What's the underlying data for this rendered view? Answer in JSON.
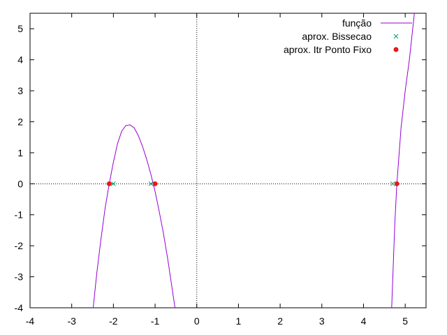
{
  "chart_data": {
    "type": "line",
    "title": "",
    "xlabel": "",
    "ylabel": "",
    "xlim": [
      -4,
      5.5
    ],
    "ylim": [
      -4,
      5.5
    ],
    "x_ticks": [
      -4,
      -3,
      -2,
      -1,
      0,
      1,
      2,
      3,
      4,
      5
    ],
    "y_ticks": [
      -4,
      -3,
      -2,
      -1,
      0,
      1,
      2,
      3,
      4,
      5
    ],
    "x_tick_labels": [
      "-4",
      "-3",
      "-2",
      "-1",
      "0",
      "1",
      "2",
      "3",
      "4",
      "5"
    ],
    "y_tick_labels": [
      "-4",
      "-3",
      "-2",
      "-1",
      "0",
      "1",
      "2",
      "3",
      "4",
      "5"
    ],
    "zero_axes": "dotted",
    "grid": false,
    "legend_position": "top-right",
    "series": [
      {
        "name": "função",
        "style": "line",
        "color": "#9400d3",
        "segments": [
          {
            "x": [
              -2.5,
              -2.4,
              -2.3,
              -2.2,
              -2.1,
              -2.0,
              -1.9,
              -1.8,
              -1.7,
              -1.6,
              -1.5,
              -1.4,
              -1.3,
              -1.2,
              -1.1,
              -1.0,
              -0.9,
              -0.8,
              -0.7,
              -0.6,
              -0.5
            ],
            "y": [
              -4.2,
              -2.9,
              -1.8,
              -0.8,
              0.0,
              0.7,
              1.3,
              1.7,
              1.88,
              1.9,
              1.8,
              1.55,
              1.2,
              0.78,
              0.3,
              -0.25,
              -0.9,
              -1.6,
              -2.4,
              -3.3,
              -4.2
            ]
          },
          {
            "x": [
              4.67,
              4.75,
              4.8,
              4.9,
              5.0,
              5.1,
              5.22
            ],
            "y": [
              -4.2,
              -1.3,
              0.0,
              1.8,
              3.0,
              4.0,
              5.5
            ]
          }
        ]
      },
      {
        "name": "aprox. Bissecao",
        "style": "points",
        "marker": "cross",
        "color": "#009e73",
        "x": [
          -2.0,
          -1.1,
          4.7
        ],
        "y": [
          0,
          0,
          0
        ]
      },
      {
        "name": "aprox. Itr Ponto Fixo",
        "style": "points",
        "marker": "filled-star",
        "color": "#e41a1c",
        "x": [
          -2.1,
          -1.0,
          4.8
        ],
        "y": [
          0,
          0,
          0
        ]
      }
    ]
  }
}
